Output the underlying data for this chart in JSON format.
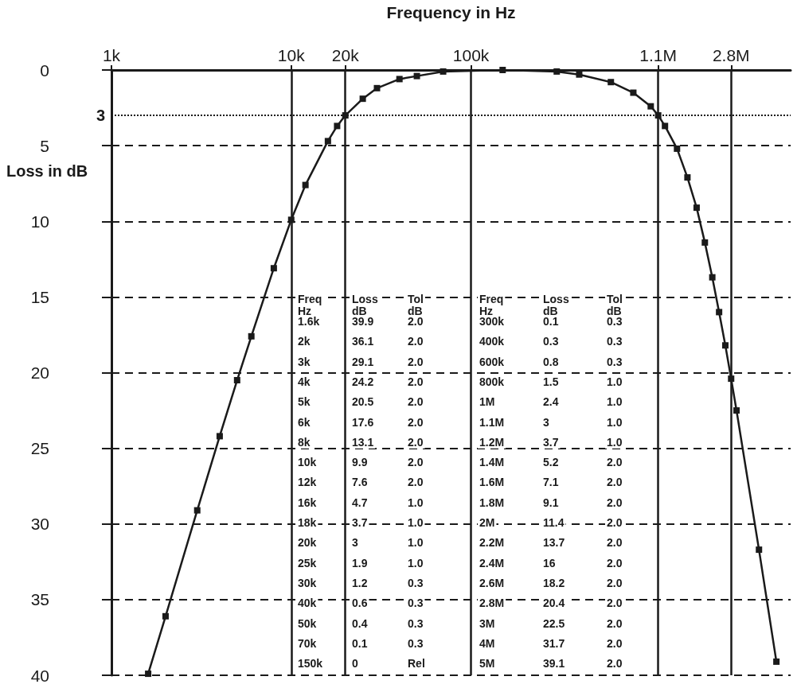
{
  "chart_data": {
    "type": "line",
    "xlabel": "Frequency in Hz",
    "ylabel": "Loss in dB",
    "log": "x",
    "xlim": [
      1000,
      6000000
    ],
    "xticks": [
      {
        "value": 1000,
        "label": "1k"
      },
      {
        "value": 10000,
        "label": "10k"
      },
      {
        "value": 20000,
        "label": "20k"
      },
      {
        "value": 100000,
        "label": "100k"
      },
      {
        "value": 1100000,
        "label": "1.1M"
      },
      {
        "value": 2800000,
        "label": "2.8M"
      }
    ],
    "ylim": [
      40,
      0
    ],
    "yticks": [
      0,
      5,
      10,
      15,
      20,
      25,
      30,
      35,
      40
    ],
    "grid": true,
    "marker": "square",
    "line_style": "solid",
    "x": [
      1600,
      2000,
      3000,
      4000,
      5000,
      6000,
      8000,
      10000,
      12000,
      16000,
      18000,
      20000,
      25000,
      30000,
      40000,
      50000,
      70000,
      150000,
      300000,
      400000,
      600000,
      800000,
      1000000,
      1100000,
      1200000,
      1400000,
      1600000,
      1800000,
      2000000,
      2200000,
      2400000,
      2600000,
      2800000,
      3000000,
      4000000,
      5000000
    ],
    "series": [
      {
        "color": "#1a1a1a",
        "values": [
          39.9,
          36.1,
          29.1,
          24.2,
          20.5,
          17.6,
          13.1,
          9.9,
          7.6,
          4.7,
          3.7,
          3,
          1.9,
          1.2,
          0.6,
          0.4,
          0.1,
          0,
          0.1,
          0.3,
          0.8,
          1.5,
          2.4,
          3,
          3.7,
          5.2,
          7.1,
          9.1,
          11.4,
          13.7,
          16,
          18.2,
          20.4,
          22.5,
          31.7,
          39.1
        ]
      }
    ],
    "ref_lines": [
      {
        "axis": "y",
        "value": 3,
        "label": "3",
        "line_style": "dotted"
      }
    ],
    "annotations": [
      "Freq",
      "Loss",
      "Tol",
      "Freq",
      "Loss",
      "Tol",
      "Hz",
      "dB",
      "dB",
      "Hz",
      "dB",
      "dB",
      "1.6k",
      "39.9",
      "2.0",
      "300k",
      "0.1",
      "0.3",
      "2k",
      "36.1",
      "2.0",
      "400k",
      "0.3",
      "0.3",
      "3k",
      "29.1",
      "2.0",
      "600k",
      "0.8",
      "0.3",
      "4k",
      "24.2",
      "2.0",
      "800k",
      "1.5",
      "1.0",
      "5k",
      "20.5",
      "2.0",
      "1M",
      "2.4",
      "1.0",
      "6k",
      "17.6",
      "2.0",
      "1.1M",
      "3",
      "1.0",
      "8k",
      "13.1",
      "2.0",
      "1.2M",
      "3.7",
      "1.0",
      "10k",
      "9.9",
      "2.0",
      "1.4M",
      "5.2",
      "2.0",
      "12k",
      "7.6",
      "2.0",
      "1.6M",
      "7.1",
      "2.0",
      "16k",
      "4.7",
      "1.0",
      "1.8M",
      "9.1",
      "2.0",
      "18k",
      "3.7",
      "1.0",
      "2M",
      "11.4",
      "2.0",
      "20k",
      "3",
      "1.0",
      "2.2M",
      "13.7",
      "2.0",
      "25k",
      "1.9",
      "1.0",
      "2.4M",
      "16",
      "2.0",
      "30k",
      "1.2",
      "0.3",
      "2.6M",
      "18.2",
      "2.0",
      "40k",
      "0.6",
      "0.3",
      "2.8M",
      "20.4",
      "2.0",
      "50k",
      "0.4",
      "0.3",
      "3M",
      "22.5",
      "2.0",
      "70k",
      "0.1",
      "0.3",
      "4M",
      "31.7",
      "2.0",
      "150k",
      "0",
      "Rel",
      "5M",
      "39.1",
      "2.0"
    ]
  }
}
